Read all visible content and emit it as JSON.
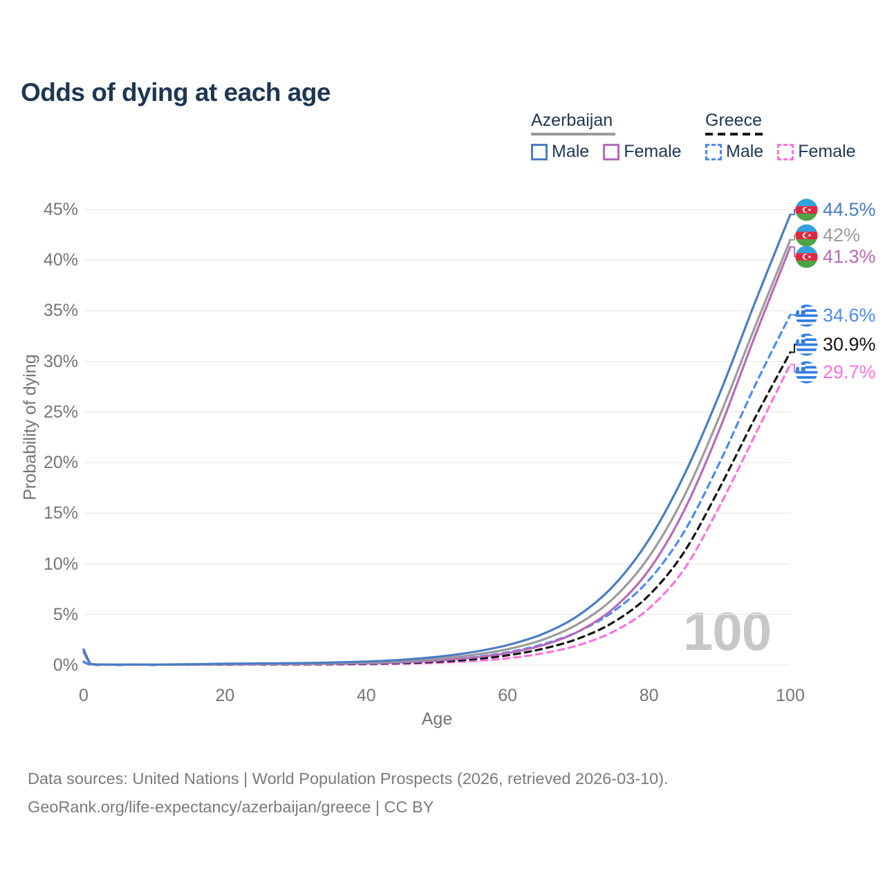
{
  "title": "Odds of dying at each age",
  "legend": {
    "groups": [
      {
        "label": "Azerbaijan",
        "underline_style": "solid",
        "underline_color": "#9b9b9b",
        "items": [
          {
            "label": "Male",
            "color": "#4a7cc2",
            "dashed": false
          },
          {
            "label": "Female",
            "color": "#b76bb8",
            "dashed": false
          }
        ]
      },
      {
        "label": "Greece",
        "underline_style": "dashed",
        "underline_color": "#141414",
        "items": [
          {
            "label": "Male",
            "color": "#4b8bf0",
            "dashed": true
          },
          {
            "label": "Female",
            "color": "#ff72df",
            "dashed": true
          }
        ]
      }
    ]
  },
  "chart_data": {
    "type": "line",
    "title": "Odds of dying at each age",
    "xlabel": "Age",
    "ylabel": "Probability of dying",
    "xlim": [
      0,
      100
    ],
    "ylim": [
      0,
      45
    ],
    "xticks": [
      0,
      20,
      40,
      60,
      80,
      100
    ],
    "ytick_labels": [
      "0%",
      "5%",
      "10%",
      "15%",
      "20%",
      "25%",
      "30%",
      "35%",
      "40%",
      "45%"
    ],
    "grid": "horizontal",
    "gridline_color": "#e9e9e9",
    "watermark": "100",
    "x": [
      0,
      1,
      2,
      5,
      10,
      15,
      20,
      25,
      30,
      35,
      40,
      45,
      50,
      55,
      60,
      65,
      70,
      75,
      80,
      85,
      90,
      95,
      100
    ],
    "series": [
      {
        "name": "Greece Female",
        "country": "Greece",
        "sex": "Female",
        "color": "#ff72df",
        "dash": true,
        "flag": "gr",
        "end_label": "29.7%",
        "values": [
          0.3,
          0.023,
          0.016,
          0.012,
          0.012,
          0.025,
          0.035,
          0.045,
          0.055,
          0.07,
          0.09,
          0.14,
          0.23,
          0.4,
          0.67,
          1.17,
          1.97,
          3.32,
          5.6,
          9.5,
          15.7,
          22.7,
          29.7
        ]
      },
      {
        "name": "Greece Total",
        "country": "Greece",
        "sex": "Both",
        "color": "#141414",
        "dash": true,
        "flag": "gr",
        "end_label": "30.9%",
        "values": [
          0.33,
          0.027,
          0.018,
          0.014,
          0.014,
          0.03,
          0.05,
          0.065,
          0.075,
          0.09,
          0.13,
          0.2,
          0.33,
          0.57,
          0.97,
          1.62,
          2.62,
          4.25,
          6.9,
          11.2,
          17.5,
          24.4,
          30.9
        ]
      },
      {
        "name": "Greece Male",
        "country": "Greece",
        "sex": "Male",
        "color": "#4b8bf0",
        "dash": true,
        "flag": "gr",
        "end_label": "34.6%",
        "values": [
          0.35,
          0.03,
          0.02,
          0.015,
          0.015,
          0.04,
          0.07,
          0.09,
          0.1,
          0.12,
          0.17,
          0.26,
          0.44,
          0.76,
          1.27,
          2.07,
          3.32,
          5.32,
          8.4,
          13.2,
          20.0,
          27.6,
          34.6
        ]
      },
      {
        "name": "Azerbaijan Female",
        "country": "Azerbaijan",
        "sex": "Female",
        "color": "#b76bb8",
        "dash": false,
        "flag": "az",
        "end_label": "41.3%",
        "values": [
          1.25,
          0.09,
          0.05,
          0.04,
          0.04,
          0.05,
          0.07,
          0.09,
          0.11,
          0.14,
          0.18,
          0.28,
          0.46,
          0.74,
          1.2,
          1.97,
          3.32,
          5.62,
          9.4,
          15.3,
          23.3,
          32.5,
          41.3
        ]
      },
      {
        "name": "Azerbaijan Total",
        "country": "Azerbaijan",
        "sex": "Both",
        "color": "#9b9b9b",
        "dash": false,
        "flag": "az",
        "end_label": "42%",
        "values": [
          1.4,
          0.1,
          0.06,
          0.04,
          0.04,
          0.07,
          0.11,
          0.13,
          0.15,
          0.2,
          0.26,
          0.4,
          0.63,
          1.0,
          1.57,
          2.52,
          4.08,
          6.62,
          10.7,
          16.7,
          24.6,
          33.4,
          42.0
        ]
      },
      {
        "name": "Azerbaijan Male",
        "country": "Azerbaijan",
        "sex": "Male",
        "color": "#4a7cc2",
        "dash": false,
        "flag": "az",
        "end_label": "44.5%",
        "values": [
          1.55,
          0.12,
          0.07,
          0.05,
          0.05,
          0.09,
          0.14,
          0.17,
          0.2,
          0.26,
          0.35,
          0.52,
          0.82,
          1.28,
          1.98,
          3.08,
          4.9,
          7.85,
          12.4,
          18.8,
          26.8,
          35.8,
          44.5
        ]
      }
    ]
  },
  "footer": {
    "line1": "Data sources: United Nations | World Population Prospects (2026, retrieved 2026-03-10).",
    "line2": "GeoRank.org/life-expectancy/azerbaijan/greece | CC BY"
  }
}
